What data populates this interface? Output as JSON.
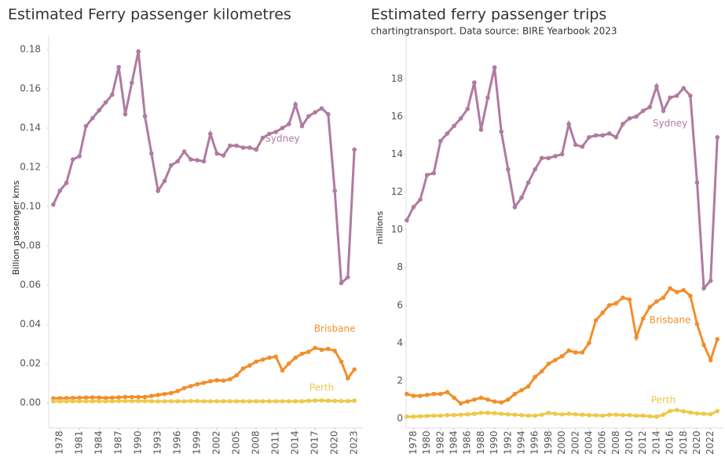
{
  "chart_data": [
    {
      "type": "line",
      "title": "Estimated Ferry passenger kilometres",
      "y_label": "Billion passenger kms",
      "x": [
        1977,
        1978,
        1979,
        1980,
        1981,
        1982,
        1983,
        1984,
        1985,
        1986,
        1987,
        1988,
        1989,
        1990,
        1991,
        1992,
        1993,
        1994,
        1995,
        1996,
        1997,
        1998,
        1999,
        2000,
        2001,
        2002,
        2003,
        2004,
        2005,
        2006,
        2007,
        2008,
        2009,
        2010,
        2011,
        2012,
        2013,
        2014,
        2015,
        2016,
        2017,
        2018,
        2019,
        2020,
        2021,
        2022,
        2023
      ],
      "series": [
        {
          "name": "Sydney",
          "color": "#b07aa1",
          "values": [
            0.101,
            0.108,
            0.112,
            0.124,
            0.1256,
            0.141,
            0.145,
            0.149,
            0.153,
            0.157,
            0.171,
            0.147,
            0.163,
            0.179,
            0.146,
            0.127,
            0.108,
            0.113,
            0.121,
            0.123,
            0.128,
            0.124,
            0.1236,
            0.123,
            0.137,
            0.127,
            0.126,
            0.131,
            0.131,
            0.13,
            0.13,
            0.129,
            0.135,
            0.137,
            0.138,
            0.14,
            0.142,
            0.152,
            0.141,
            0.146,
            0.148,
            0.15,
            0.147,
            0.108,
            0.061,
            0.064,
            0.129
          ]
        },
        {
          "name": "Brisbane",
          "color": "#f28e2b",
          "values": [
            0.0023,
            0.0023,
            0.0024,
            0.0025,
            0.0026,
            0.0027,
            0.0028,
            0.0027,
            0.0025,
            0.0026,
            0.0028,
            0.003,
            0.003,
            0.003,
            0.003,
            0.0035,
            0.004,
            0.0045,
            0.005,
            0.006,
            0.0075,
            0.0085,
            0.0095,
            0.0102,
            0.011,
            0.0115,
            0.0113,
            0.012,
            0.014,
            0.0175,
            0.019,
            0.021,
            0.022,
            0.023,
            0.0235,
            0.0165,
            0.02,
            0.023,
            0.025,
            0.026,
            0.028,
            0.027,
            0.0275,
            0.0265,
            0.021,
            0.0125,
            0.017
          ]
        },
        {
          "name": "Perth",
          "color": "#edc948",
          "values": [
            0.0008,
            0.0008,
            0.0008,
            0.0008,
            0.0008,
            0.0008,
            0.0008,
            0.0008,
            0.0008,
            0.0008,
            0.0009,
            0.0009,
            0.0009,
            0.0009,
            0.0009,
            0.0008,
            0.0008,
            0.0008,
            0.0008,
            0.0008,
            0.0008,
            0.0009,
            0.0009,
            0.0008,
            0.0008,
            0.0008,
            0.0008,
            0.0008,
            0.0008,
            0.0008,
            0.0008,
            0.0008,
            0.0008,
            0.0008,
            0.0008,
            0.0008,
            0.0008,
            0.0008,
            0.0008,
            0.001,
            0.0012,
            0.0012,
            0.0011,
            0.001,
            0.0009,
            0.0009,
            0.0011
          ]
        }
      ],
      "xlim": [
        1976.3,
        2024.3
      ],
      "xticks": [
        1978,
        1981,
        1984,
        1987,
        1990,
        1993,
        1996,
        1999,
        2002,
        2005,
        2008,
        2011,
        2014,
        2017,
        2020,
        2023
      ],
      "ylim": [
        -0.0128,
        0.1872
      ],
      "yticks": [
        {
          "value": 0,
          "label": "0.00"
        },
        {
          "value": 0.02,
          "label": "0.02"
        },
        {
          "value": 0.04,
          "label": "0.04"
        },
        {
          "value": 0.06,
          "label": "0.06"
        },
        {
          "value": 0.08,
          "label": "0.08"
        },
        {
          "value": 0.1,
          "label": "0.10"
        },
        {
          "value": 0.12,
          "label": "0.12"
        },
        {
          "value": 0.14,
          "label": "0.14"
        },
        {
          "value": 0.16,
          "label": "0.16"
        },
        {
          "value": 0.18,
          "label": "0.18"
        }
      ],
      "grid": false
    },
    {
      "type": "line",
      "title": "Estimated ferry passenger trips",
      "subtitle": "chartingtransport. Data source: BIRE Yearbook 2023",
      "y_label": "millions",
      "x": [
        1977,
        1978,
        1979,
        1980,
        1981,
        1982,
        1983,
        1984,
        1985,
        1986,
        1987,
        1988,
        1989,
        1990,
        1991,
        1992,
        1993,
        1994,
        1995,
        1996,
        1997,
        1998,
        1999,
        2000,
        2001,
        2002,
        2003,
        2004,
        2005,
        2006,
        2007,
        2008,
        2009,
        2010,
        2011,
        2012,
        2013,
        2014,
        2015,
        2016,
        2017,
        2018,
        2019,
        2020,
        2021,
        2022,
        2023
      ],
      "series": [
        {
          "name": "Sydney",
          "color": "#b07aa1",
          "values": [
            10.5,
            11.2,
            11.6,
            12.9,
            13.0,
            14.7,
            15.1,
            15.5,
            15.9,
            16.4,
            17.8,
            15.3,
            17.0,
            18.6,
            15.2,
            13.2,
            11.2,
            11.7,
            12.5,
            13.2,
            13.8,
            13.8,
            13.9,
            14.0,
            15.6,
            14.5,
            14.4,
            14.9,
            15.0,
            15.0,
            15.1,
            14.9,
            15.6,
            15.9,
            16.0,
            16.3,
            16.5,
            17.6,
            16.3,
            17.0,
            17.1,
            17.5,
            17.1,
            12.5,
            6.9,
            7.3,
            14.9
          ]
        },
        {
          "name": "Brisbane",
          "color": "#f28e2b",
          "values": [
            1.3,
            1.2,
            1.2,
            1.25,
            1.3,
            1.3,
            1.4,
            1.1,
            0.8,
            0.9,
            1.0,
            1.1,
            1.0,
            0.9,
            0.85,
            1.0,
            1.3,
            1.5,
            1.7,
            2.2,
            2.5,
            2.9,
            3.1,
            3.3,
            3.6,
            3.5,
            3.5,
            4.0,
            5.2,
            5.6,
            6.0,
            6.1,
            6.4,
            6.3,
            4.3,
            5.3,
            5.9,
            6.2,
            6.4,
            6.9,
            6.7,
            6.8,
            6.5,
            5.0,
            3.9,
            3.1,
            4.2
          ]
        },
        {
          "name": "Perth",
          "color": "#edc948",
          "values": [
            0.1,
            0.1,
            0.12,
            0.14,
            0.15,
            0.15,
            0.18,
            0.18,
            0.2,
            0.22,
            0.25,
            0.3,
            0.3,
            0.28,
            0.25,
            0.22,
            0.2,
            0.18,
            0.15,
            0.15,
            0.2,
            0.3,
            0.25,
            0.22,
            0.25,
            0.22,
            0.2,
            0.18,
            0.17,
            0.15,
            0.2,
            0.2,
            0.18,
            0.18,
            0.15,
            0.15,
            0.12,
            0.1,
            0.2,
            0.4,
            0.45,
            0.38,
            0.32,
            0.27,
            0.25,
            0.23,
            0.4
          ]
        }
      ],
      "xlim": [
        1976.9,
        2023.9
      ],
      "xticks": [
        1978,
        1980,
        1982,
        1984,
        1986,
        1988,
        1990,
        1992,
        1994,
        1996,
        1998,
        2000,
        2002,
        2004,
        2006,
        2008,
        2010,
        2012,
        2014,
        2016,
        2018,
        2020,
        2022
      ],
      "ylim": [
        -0.5,
        20.3
      ],
      "yticks": [
        0,
        2,
        4,
        6,
        8,
        10,
        12,
        14,
        16,
        18
      ],
      "grid": false
    }
  ]
}
